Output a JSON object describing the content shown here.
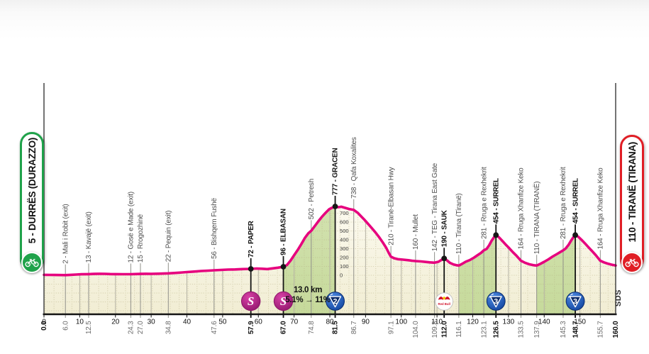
{
  "race": {
    "start_label": "5 - DURRËS (DURAZZO)",
    "finish_label": "110 - TIRANË (TIRANA)",
    "sds_logo": "SDS",
    "climb_note": {
      "line1": "13.0 km",
      "line2": "5.1% → 11%"
    }
  },
  "colors": {
    "giro_pink": "#e6007e",
    "start_green": "#1fa24a",
    "finish_red": "#e01e25",
    "sprint_purple_dark": "#8c1468",
    "category_blue_dark": "#0a2d6e",
    "redbull_red": "#d2122a",
    "grid_gray": "#b5b2a4",
    "waypoint_gray": "#90908a",
    "axis_black": "#141414"
  },
  "chart_data": {
    "type": "area",
    "x_unit": "km",
    "elevation_unit": "m",
    "xlim": [
      0,
      160
    ],
    "axis_ticks": [
      0,
      10,
      20,
      30,
      40,
      50,
      60,
      70,
      80,
      90,
      100,
      110,
      120,
      130,
      140,
      150
    ],
    "elevation_scale": [
      0,
      100,
      200,
      300,
      400,
      500,
      600,
      700
    ],
    "climb_segments": [
      [
        67.0,
        81.5
      ],
      [
        116.1,
        126.5
      ],
      [
        137.9,
        148.7
      ]
    ],
    "climb_note_anchor_km": 74,
    "waypoints": [
      {
        "km": 0.0,
        "value": "0.0",
        "elev": 5,
        "label": null,
        "bold": true,
        "icon": null
      },
      {
        "km": 6.0,
        "value": "6.0",
        "elev": 2,
        "label": "2 - Mali i Robit (exit)",
        "bold": false,
        "icon": null
      },
      {
        "km": 12.5,
        "value": "12.5",
        "elev": 13,
        "label": "13 - Kavajë (exit)",
        "bold": false,
        "icon": null
      },
      {
        "km": 24.3,
        "value": "24.3",
        "elev": 12,
        "label": "12 - Gosë e Made (exit)",
        "bold": false,
        "icon": null
      },
      {
        "km": 27.0,
        "value": "27.0",
        "elev": 15,
        "label": "15 - Rrogozhinë",
        "bold": false,
        "icon": null
      },
      {
        "km": 34.8,
        "value": "34.8",
        "elev": 22,
        "label": "22 - Pequin (exit)",
        "bold": false,
        "icon": null
      },
      {
        "km": 47.6,
        "value": "47.6",
        "elev": 56,
        "label": "56 - Bishqem Fushë",
        "bold": false,
        "icon": null
      },
      {
        "km": 57.9,
        "value": "57.9",
        "elev": 72,
        "label": "72 - PAPER",
        "bold": true,
        "icon": "sprint"
      },
      {
        "km": 67.0,
        "value": "67.0",
        "elev": 96,
        "label": "96 - ELBASAN",
        "bold": true,
        "icon": "sprint"
      },
      {
        "km": 74.8,
        "value": "74.8",
        "elev": 502,
        "label": "502 - Petresh",
        "bold": false,
        "icon": null
      },
      {
        "km": 81.5,
        "value": "81.5",
        "elev": 777,
        "label": "777 - GRACEN",
        "bold": true,
        "icon": "cat2"
      },
      {
        "km": 86.7,
        "value": "86.7",
        "elev": 738,
        "label": "738 - Qafa Koxalites",
        "bold": false,
        "icon": null
      },
      {
        "km": 97.1,
        "value": "97.1",
        "elev": 210,
        "label": "210 - Tiranë-Elbasan Hwy",
        "bold": false,
        "icon": null
      },
      {
        "km": 104.0,
        "value": "104.0",
        "elev": 160,
        "label": "160 - Mullet",
        "bold": false,
        "icon": null
      },
      {
        "km": 109.3,
        "value": "109.3",
        "elev": 142,
        "label": "142 - TEG - Tirana East Gate",
        "bold": false,
        "icon": null
      },
      {
        "km": 112.0,
        "value": "112.0",
        "elev": 190,
        "label": "190 - SAUK",
        "bold": true,
        "icon": "redbull"
      },
      {
        "km": 116.1,
        "value": "116.1",
        "elev": 110,
        "label": "110 - Tirana (Tiranë)",
        "bold": false,
        "icon": null
      },
      {
        "km": 123.1,
        "value": "123.1",
        "elev": 281,
        "label": "281 - Rruga e Rexhekrit",
        "bold": false,
        "icon": null
      },
      {
        "km": 126.5,
        "value": "126.5",
        "elev": 454,
        "label": "454 - SURREL",
        "bold": true,
        "icon": "cat3"
      },
      {
        "km": 133.5,
        "value": "133.5",
        "elev": 164,
        "label": "164 - Rruga Xhanfize Keko",
        "bold": false,
        "icon": null
      },
      {
        "km": 137.9,
        "value": "137.9",
        "elev": 110,
        "label": "110 - TIRANA (TIRANË)",
        "bold": false,
        "icon": null
      },
      {
        "km": 145.3,
        "value": "145.3",
        "elev": 281,
        "label": "281 - Rruga e Rexhekrit",
        "bold": false,
        "icon": null
      },
      {
        "km": 148.7,
        "value": "148.7",
        "elev": 454,
        "label": "454 - SURREL",
        "bold": true,
        "icon": "cat3"
      },
      {
        "km": 155.7,
        "value": "155.7",
        "elev": 164,
        "label": "164 - Rruga Xhanfize Keko",
        "bold": false,
        "icon": null
      },
      {
        "km": 160.0,
        "value": "160.0",
        "elev": 110,
        "label": null,
        "bold": true,
        "icon": null
      }
    ],
    "profile": [
      [
        0,
        5
      ],
      [
        1.5,
        4
      ],
      [
        3,
        3
      ],
      [
        4.5,
        2.5
      ],
      [
        6,
        2
      ],
      [
        7.5,
        5
      ],
      [
        9,
        8
      ],
      [
        10.5,
        11
      ],
      [
        12.5,
        13
      ],
      [
        14,
        15
      ],
      [
        15.5,
        17
      ],
      [
        17,
        16
      ],
      [
        18.5,
        14
      ],
      [
        20,
        13
      ],
      [
        22,
        12
      ],
      [
        24.3,
        12
      ],
      [
        25.5,
        14
      ],
      [
        27,
        15
      ],
      [
        28.5,
        17
      ],
      [
        30,
        16
      ],
      [
        32,
        18
      ],
      [
        34.8,
        22
      ],
      [
        36.5,
        26
      ],
      [
        38,
        30
      ],
      [
        40,
        36
      ],
      [
        42,
        42
      ],
      [
        44,
        48
      ],
      [
        46,
        52
      ],
      [
        47.6,
        56
      ],
      [
        49.5,
        60
      ],
      [
        51.5,
        64
      ],
      [
        53.5,
        66
      ],
      [
        55.5,
        70
      ],
      [
        57.9,
        72
      ],
      [
        59.5,
        76
      ],
      [
        61,
        74
      ],
      [
        62.5,
        70
      ],
      [
        64,
        78
      ],
      [
        65.5,
        86
      ],
      [
        67,
        96
      ],
      [
        68,
        115
      ],
      [
        69,
        165
      ],
      [
        70,
        225
      ],
      [
        71,
        285
      ],
      [
        72,
        350
      ],
      [
        73,
        420
      ],
      [
        74,
        475
      ],
      [
        74.8,
        502
      ],
      [
        75.8,
        555
      ],
      [
        76.8,
        610
      ],
      [
        77.8,
        660
      ],
      [
        78.8,
        705
      ],
      [
        79.8,
        745
      ],
      [
        80.6,
        762
      ],
      [
        81.5,
        777
      ],
      [
        82.3,
        768
      ],
      [
        83.2,
        774
      ],
      [
        84.2,
        762
      ],
      [
        85.4,
        748
      ],
      [
        86.7,
        738
      ],
      [
        87.8,
        706
      ],
      [
        88.8,
        664
      ],
      [
        89.8,
        622
      ],
      [
        90.8,
        576
      ],
      [
        91.8,
        530
      ],
      [
        92.8,
        482
      ],
      [
        93.8,
        430
      ],
      [
        94.8,
        372
      ],
      [
        95.8,
        308
      ],
      [
        96.5,
        252
      ],
      [
        97.1,
        210
      ],
      [
        98,
        192
      ],
      [
        99,
        182
      ],
      [
        100.5,
        176
      ],
      [
        102,
        170
      ],
      [
        103,
        164
      ],
      [
        104,
        160
      ],
      [
        105.5,
        156
      ],
      [
        107,
        150
      ],
      [
        108,
        146
      ],
      [
        109.3,
        142
      ],
      [
        110.4,
        152
      ],
      [
        111.2,
        172
      ],
      [
        112,
        190
      ],
      [
        112.8,
        168
      ],
      [
        113.6,
        140
      ],
      [
        114.6,
        122
      ],
      [
        115.4,
        114
      ],
      [
        116.1,
        110
      ],
      [
        117,
        128
      ],
      [
        118,
        152
      ],
      [
        119.2,
        172
      ],
      [
        120.4,
        200
      ],
      [
        121.4,
        228
      ],
      [
        122.3,
        252
      ],
      [
        123.1,
        281
      ],
      [
        123.9,
        298
      ],
      [
        124.6,
        340
      ],
      [
        125.3,
        392
      ],
      [
        126,
        432
      ],
      [
        126.5,
        454
      ],
      [
        127.3,
        430
      ],
      [
        128.2,
        392
      ],
      [
        129.2,
        348
      ],
      [
        130.2,
        306
      ],
      [
        131.2,
        262
      ],
      [
        132.2,
        222
      ],
      [
        133.5,
        164
      ],
      [
        134.6,
        142
      ],
      [
        135.8,
        124
      ],
      [
        137,
        114
      ],
      [
        137.9,
        110
      ],
      [
        138.9,
        128
      ],
      [
        140,
        152
      ],
      [
        141.2,
        180
      ],
      [
        142.4,
        212
      ],
      [
        143.6,
        240
      ],
      [
        144.5,
        262
      ],
      [
        145.3,
        281
      ],
      [
        146,
        302
      ],
      [
        146.8,
        342
      ],
      [
        147.6,
        396
      ],
      [
        148.2,
        432
      ],
      [
        148.7,
        454
      ],
      [
        149.5,
        436
      ],
      [
        150.4,
        402
      ],
      [
        151.4,
        360
      ],
      [
        152.4,
        316
      ],
      [
        153.4,
        272
      ],
      [
        154.4,
        228
      ],
      [
        155.7,
        164
      ],
      [
        156.7,
        146
      ],
      [
        157.7,
        132
      ],
      [
        158.8,
        120
      ],
      [
        160,
        110
      ]
    ]
  }
}
